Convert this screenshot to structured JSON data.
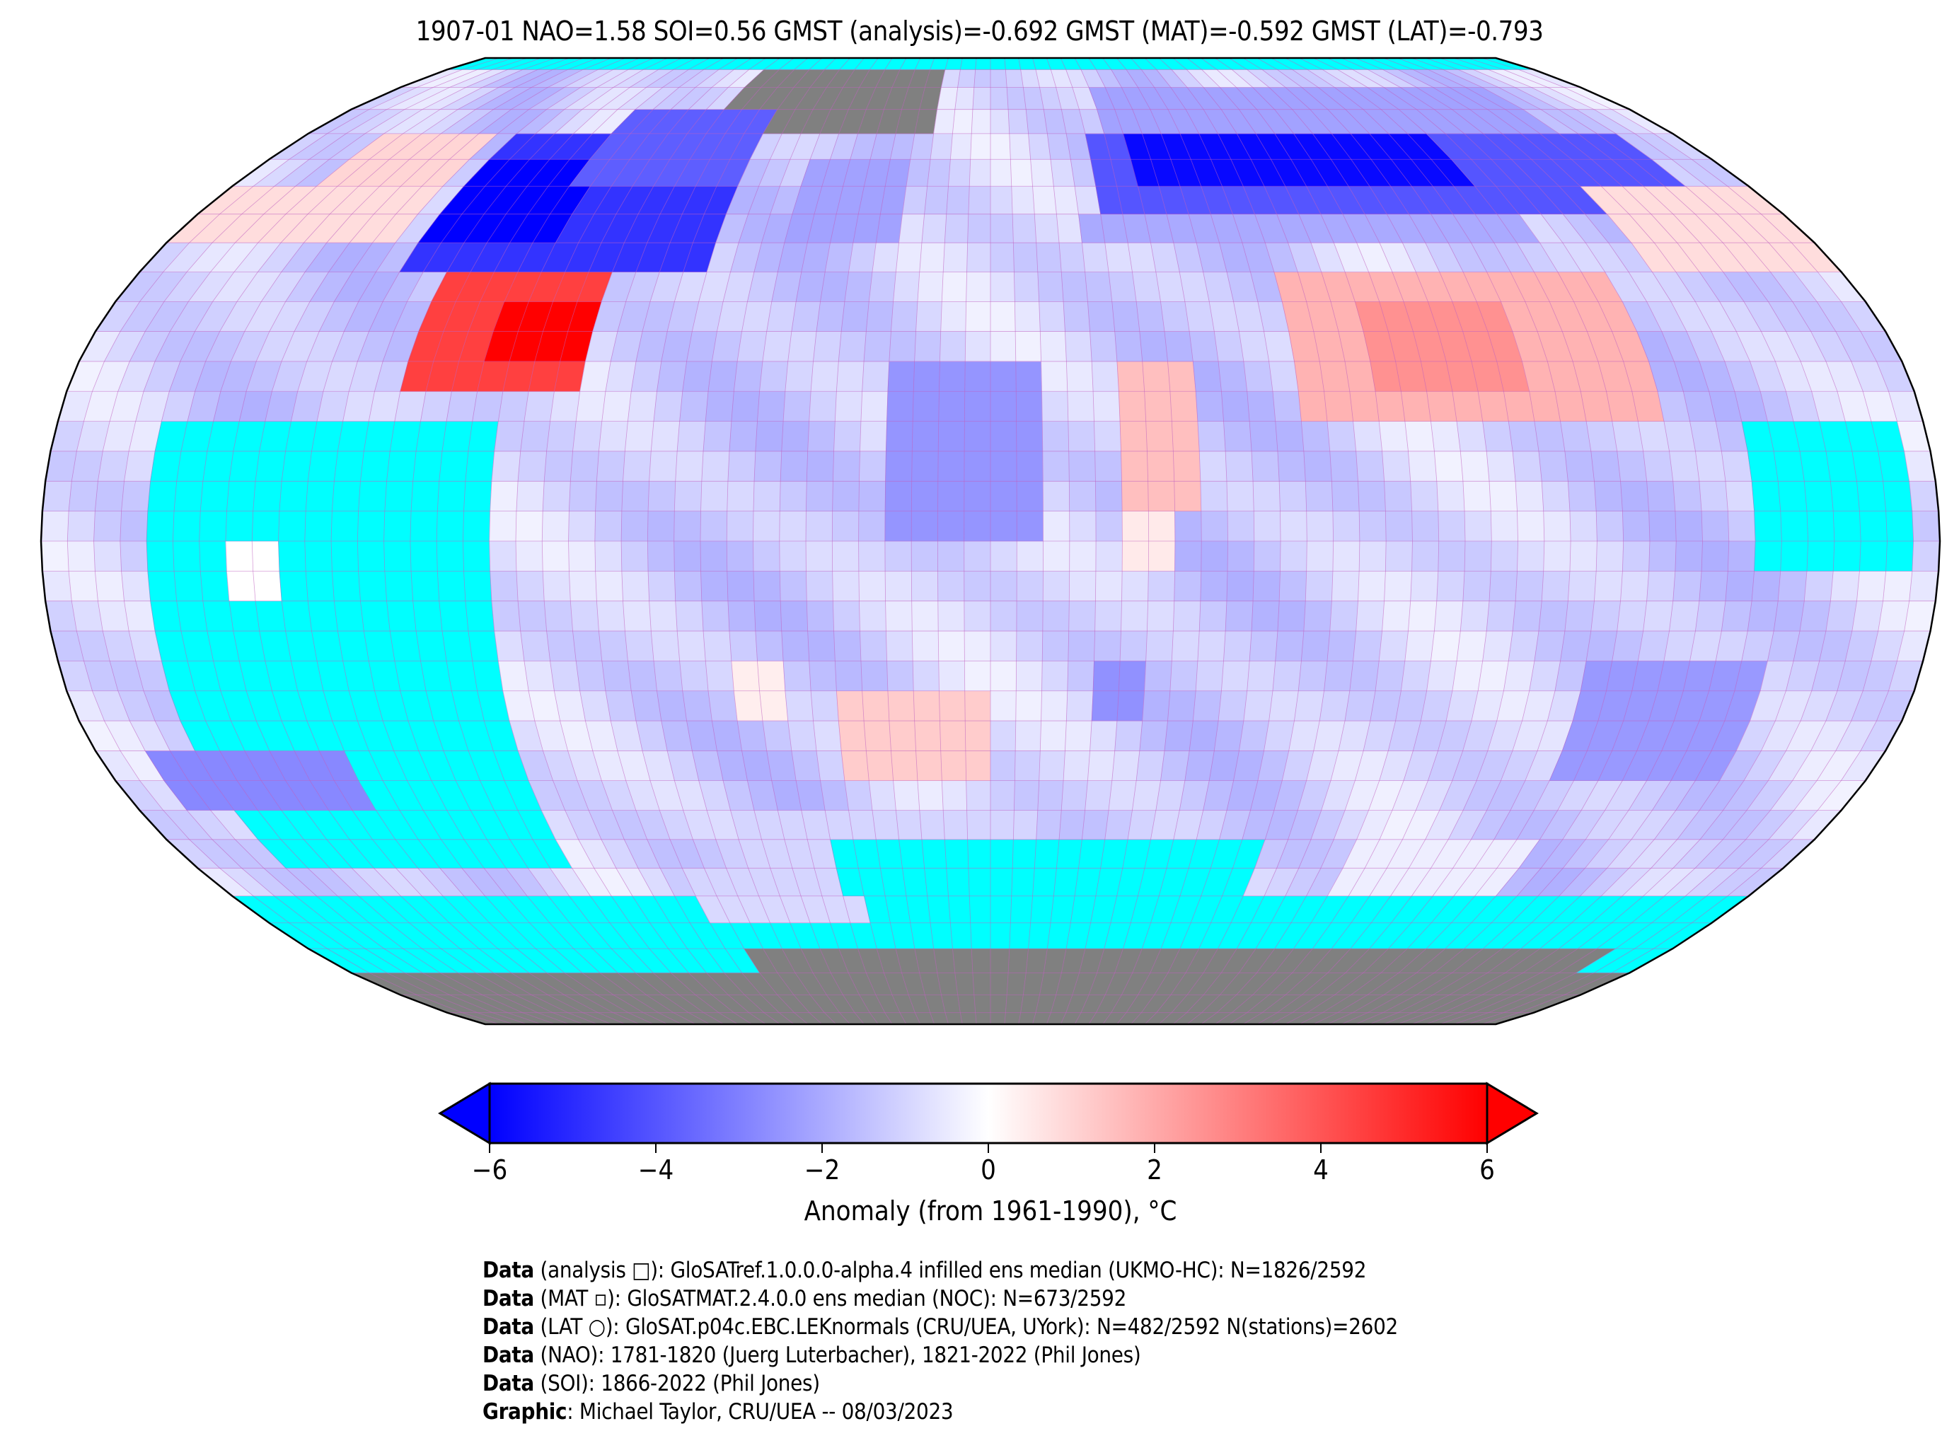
{
  "title": "1907-01 NAO=1.58 SOI=0.56 GMST (analysis)=-0.692 GMST (MAT)=-0.592 GMST (LAT)=-0.793",
  "chart_data": {
    "type": "heatmap",
    "projection": "Robinson",
    "grid_resolution_deg": 5,
    "default_anomaly": -1.1,
    "colors": {
      "no_data": "#00ffff",
      "ice": "#808080",
      "grid": "#c060c0",
      "cold": "#0000ff",
      "neutral": "#ffffff",
      "warm": "#ff0000"
    },
    "regions": [
      {
        "lat": [
          -90,
          -58
        ],
        "lon": [
          -180,
          180
        ],
        "fill": "no-data"
      },
      {
        "lat": [
          -60,
          -55
        ],
        "lon": [
          -70,
          10
        ],
        "anomaly": -1.0
      },
      {
        "lat": [
          -65,
          -60
        ],
        "lon": [
          -70,
          -30
        ],
        "anomaly": -0.9
      },
      {
        "lat": [
          -90,
          -68
        ],
        "lon": [
          -65,
          165
        ],
        "fill": "ice"
      },
      {
        "lat": [
          -90,
          -75
        ],
        "lon": [
          -180,
          180
        ],
        "fill": "ice"
      },
      {
        "lat": [
          85,
          90
        ],
        "lon": [
          -180,
          180
        ],
        "fill": "no-data"
      },
      {
        "lat": [
          70,
          85
        ],
        "lon": [
          -75,
          -15
        ],
        "fill": "ice"
      },
      {
        "lat": [
          -55,
          20
        ],
        "lon": [
          -160,
          -95
        ],
        "fill": "no-data"
      },
      {
        "lat": [
          -10,
          0
        ],
        "lon": [
          -145,
          -135
        ],
        "anomaly": 0.0
      },
      {
        "lat": [
          -45,
          -35
        ],
        "lon": [
          -170,
          -130
        ],
        "anomaly": -2.8
      },
      {
        "lat": [
          -5,
          20
        ],
        "lon": [
          147,
          177
        ],
        "fill": "no-data"
      },
      {
        "lat": [
          -55,
          -45
        ],
        "lon": [
          -55,
          10
        ],
        "anomaly": -1.0
      },
      {
        "lat": [
          -60,
          -50
        ],
        "lon": [
          -35,
          10
        ],
        "fill": "no-data"
      },
      {
        "lat": [
          -60,
          -50
        ],
        "lon": [
          80,
          120
        ],
        "anomaly": -0.4
      },
      {
        "lat": [
          -60,
          -50
        ],
        "lon": [
          -20,
          60
        ],
        "fill": "no-data"
      },
      {
        "lat": [
          45,
          70
        ],
        "lon": [
          -125,
          -60
        ],
        "anomaly": -4.8
      },
      {
        "lat": [
          50,
          65
        ],
        "lon": [
          -125,
          -95
        ],
        "anomaly": -6.0
      },
      {
        "lat": [
          60,
          75
        ],
        "lon": [
          -100,
          -60
        ],
        "anomaly": -3.8
      },
      {
        "lat": [
          60,
          70
        ],
        "lon": [
          -160,
          -130
        ],
        "anomaly": 1.0
      },
      {
        "lat": [
          50,
          60
        ],
        "lon": [
          -180,
          -130
        ],
        "anomaly": 0.8
      },
      {
        "lat": [
          25,
          45
        ],
        "lon": [
          -115,
          -80
        ],
        "anomaly": 4.5
      },
      {
        "lat": [
          30,
          40
        ],
        "lon": [
          -100,
          -80
        ],
        "anomaly": 6.0
      },
      {
        "lat": [
          55,
          70
        ],
        "lon": [
          25,
          165
        ],
        "anomaly": -4.0
      },
      {
        "lat": [
          60,
          70
        ],
        "lon": [
          35,
          115
        ],
        "anomaly": -5.8
      },
      {
        "lat": [
          70,
          80
        ],
        "lon": [
          30,
          150
        ],
        "anomaly": -2.2
      },
      {
        "lat": [
          50,
          55
        ],
        "lon": [
          20,
          120
        ],
        "anomaly": -2.0
      },
      {
        "lat": [
          20,
          45
        ],
        "lon": [
          60,
          130
        ],
        "anomaly": 1.8
      },
      {
        "lat": [
          25,
          40
        ],
        "lon": [
          75,
          105
        ],
        "anomaly": 2.6
      },
      {
        "lat": [
          45,
          60
        ],
        "lon": [
          140,
          180
        ],
        "anomaly": 0.8
      },
      {
        "lat": [
          0,
          30
        ],
        "lon": [
          -20,
          10
        ],
        "anomaly": -2.5
      },
      {
        "lat": [
          5,
          30
        ],
        "lon": [
          25,
          40
        ],
        "anomaly": 1.5
      },
      {
        "lat": [
          -5,
          5
        ],
        "lon": [
          25,
          35
        ],
        "anomaly": 0.5
      },
      {
        "lat": [
          -30,
          -20
        ],
        "lon": [
          20,
          30
        ],
        "anomaly": -2.6
      },
      {
        "lat": [
          -40,
          -25
        ],
        "lon": [
          -30,
          0
        ],
        "anomaly": 1.2
      },
      {
        "lat": [
          -30,
          -20
        ],
        "lon": [
          -50,
          -40
        ],
        "anomaly": 0.4
      },
      {
        "lat": [
          -40,
          -20
        ],
        "lon": [
          115,
          150
        ],
        "anomaly": -2.4
      },
      {
        "lat": [
          50,
          65
        ],
        "lon": [
          -45,
          -20
        ],
        "anomaly": -2.2
      }
    ],
    "colorbar": {
      "ticks": [
        "−6",
        "−4",
        "−2",
        "0",
        "2",
        "4",
        "6"
      ],
      "tick_values": [
        -6,
        -4,
        -2,
        0,
        2,
        4,
        6
      ],
      "range": [
        -6,
        6
      ],
      "extend": "both",
      "label": "Anomaly (from 1961-1990), °C"
    }
  },
  "footer": [
    {
      "bold": "Data",
      "text": " (analysis □): GloSATref.1.0.0.0-alpha.4 infilled ens median (UKMO-HC): N=1826/2592"
    },
    {
      "bold": "Data",
      "text": " (MAT ▫): GloSATMAT.2.4.0.0 ens median (NOC): N=673/2592"
    },
    {
      "bold": "Data",
      "text": " (LAT ○): GloSAT.p04c.EBC.LEKnormals (CRU/UEA, UYork): N=482/2592 N(stations)=2602"
    },
    {
      "bold": "Data",
      "text": " (NAO): 1781-1820 (Juerg Luterbacher), 1821-2022 (Phil Jones)"
    },
    {
      "bold": "Data",
      "text": " (SOI): 1866-2022 (Phil Jones)"
    },
    {
      "bold": "Graphic",
      "text": ": Michael Taylor, CRU/UEA -- 08/03/2023"
    }
  ]
}
